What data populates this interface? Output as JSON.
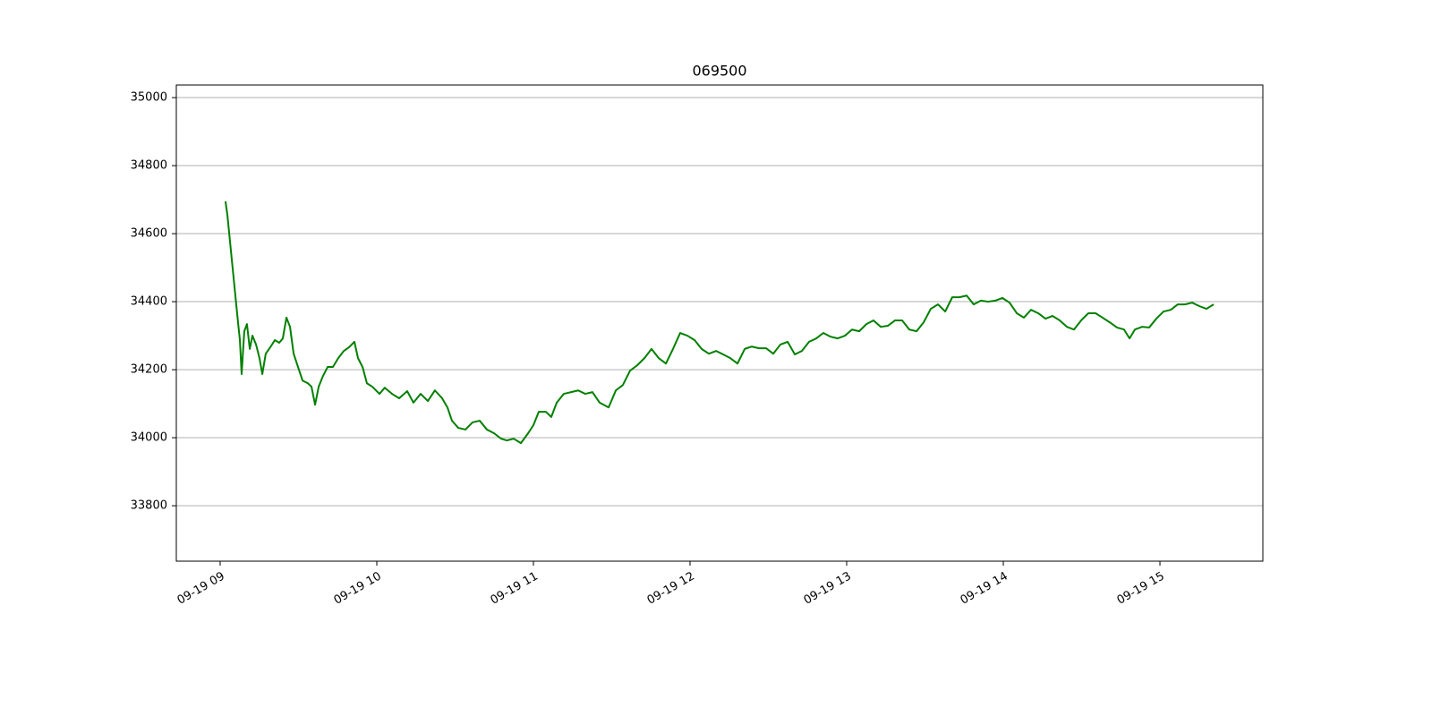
{
  "chart_data": {
    "type": "line",
    "title": "069500",
    "x": [
      9.034,
      9.046,
      9.063,
      9.08,
      9.097,
      9.114,
      9.126,
      9.137,
      9.154,
      9.171,
      9.189,
      9.206,
      9.229,
      9.251,
      9.269,
      9.291,
      9.32,
      9.349,
      9.377,
      9.4,
      9.423,
      9.446,
      9.469,
      9.497,
      9.526,
      9.56,
      9.583,
      9.606,
      9.629,
      9.657,
      9.686,
      9.72,
      9.754,
      9.789,
      9.823,
      9.857,
      9.88,
      9.909,
      9.937,
      9.971,
      10.017,
      10.051,
      10.097,
      10.143,
      10.194,
      10.234,
      10.28,
      10.326,
      10.371,
      10.417,
      10.451,
      10.48,
      10.52,
      10.566,
      10.611,
      10.657,
      10.703,
      10.749,
      10.794,
      10.829,
      10.874,
      10.92,
      10.966,
      11.0,
      11.034,
      11.08,
      11.114,
      11.149,
      11.194,
      11.24,
      11.286,
      11.331,
      11.377,
      11.423,
      11.48,
      11.526,
      11.571,
      11.617,
      11.663,
      11.709,
      11.754,
      11.8,
      11.846,
      11.891,
      11.937,
      11.983,
      12.029,
      12.074,
      12.12,
      12.166,
      12.211,
      12.257,
      12.303,
      12.349,
      12.394,
      12.44,
      12.486,
      12.531,
      12.577,
      12.623,
      12.669,
      12.714,
      12.76,
      12.806,
      12.851,
      12.897,
      12.943,
      12.989,
      13.034,
      13.08,
      13.126,
      13.171,
      13.217,
      13.263,
      13.309,
      13.354,
      13.4,
      13.446,
      13.491,
      13.537,
      13.583,
      13.629,
      13.674,
      13.72,
      13.766,
      13.811,
      13.857,
      13.903,
      13.949,
      13.994,
      14.04,
      14.086,
      14.131,
      14.177,
      14.223,
      14.269,
      14.314,
      14.36,
      14.406,
      14.451,
      14.497,
      14.543,
      14.589,
      14.634,
      14.68,
      14.726,
      14.771,
      14.806,
      14.84,
      14.886,
      14.931,
      14.977,
      15.023,
      15.069,
      15.114,
      15.16,
      15.206,
      15.251,
      15.297,
      15.343
    ],
    "series": [
      {
        "color": "#008000",
        "values": [
          34695,
          34655,
          34576,
          34497,
          34418,
          34339,
          34287,
          34187,
          34313,
          34334,
          34261,
          34300,
          34274,
          34234,
          34187,
          34247,
          34266,
          34287,
          34279,
          34292,
          34353,
          34326,
          34247,
          34208,
          34168,
          34160,
          34150,
          34097,
          34150,
          34182,
          34208,
          34208,
          34234,
          34255,
          34266,
          34282,
          34234,
          34208,
          34160,
          34150,
          34129,
          34147,
          34129,
          34116,
          34137,
          34103,
          34129,
          34108,
          34139,
          34116,
          34089,
          34050,
          34029,
          34024,
          34045,
          34050,
          34024,
          34013,
          33997,
          33992,
          33997,
          33984,
          34013,
          34037,
          34076,
          34076,
          34061,
          34103,
          34129,
          34134,
          34139,
          34129,
          34134,
          34103,
          34089,
          34139,
          34155,
          34197,
          34213,
          34234,
          34261,
          34234,
          34218,
          34261,
          34308,
          34300,
          34287,
          34261,
          34247,
          34255,
          34245,
          34234,
          34218,
          34261,
          34268,
          34263,
          34263,
          34247,
          34274,
          34282,
          34245,
          34255,
          34282,
          34292,
          34308,
          34297,
          34292,
          34300,
          34318,
          34313,
          34334,
          34345,
          34326,
          34329,
          34345,
          34345,
          34318,
          34313,
          34339,
          34379,
          34392,
          34371,
          34413,
          34413,
          34418,
          34392,
          34403,
          34400,
          34403,
          34411,
          34397,
          34366,
          34353,
          34376,
          34366,
          34350,
          34358,
          34345,
          34326,
          34318,
          34345,
          34366,
          34366,
          34353,
          34339,
          34324,
          34318,
          34292,
          34318,
          34326,
          34324,
          34350,
          34371,
          34376,
          34392,
          34392,
          34397,
          34387,
          34379,
          34392
        ]
      }
    ],
    "xlim": [
      8.72,
      15.657
    ],
    "xticks": [
      {
        "value": 9,
        "label": "09-19 09"
      },
      {
        "value": 10,
        "label": "09-19 10"
      },
      {
        "value": 11,
        "label": "09-19 11"
      },
      {
        "value": 12,
        "label": "09-19 12"
      },
      {
        "value": 13,
        "label": "09-19 13"
      },
      {
        "value": 14,
        "label": "09-19 14"
      },
      {
        "value": 15,
        "label": "09-19 15"
      }
    ],
    "ylim": [
      33637,
      35037
    ],
    "yticks": [
      33800,
      34000,
      34200,
      34400,
      34600,
      34800,
      35000
    ],
    "grid": "y"
  }
}
